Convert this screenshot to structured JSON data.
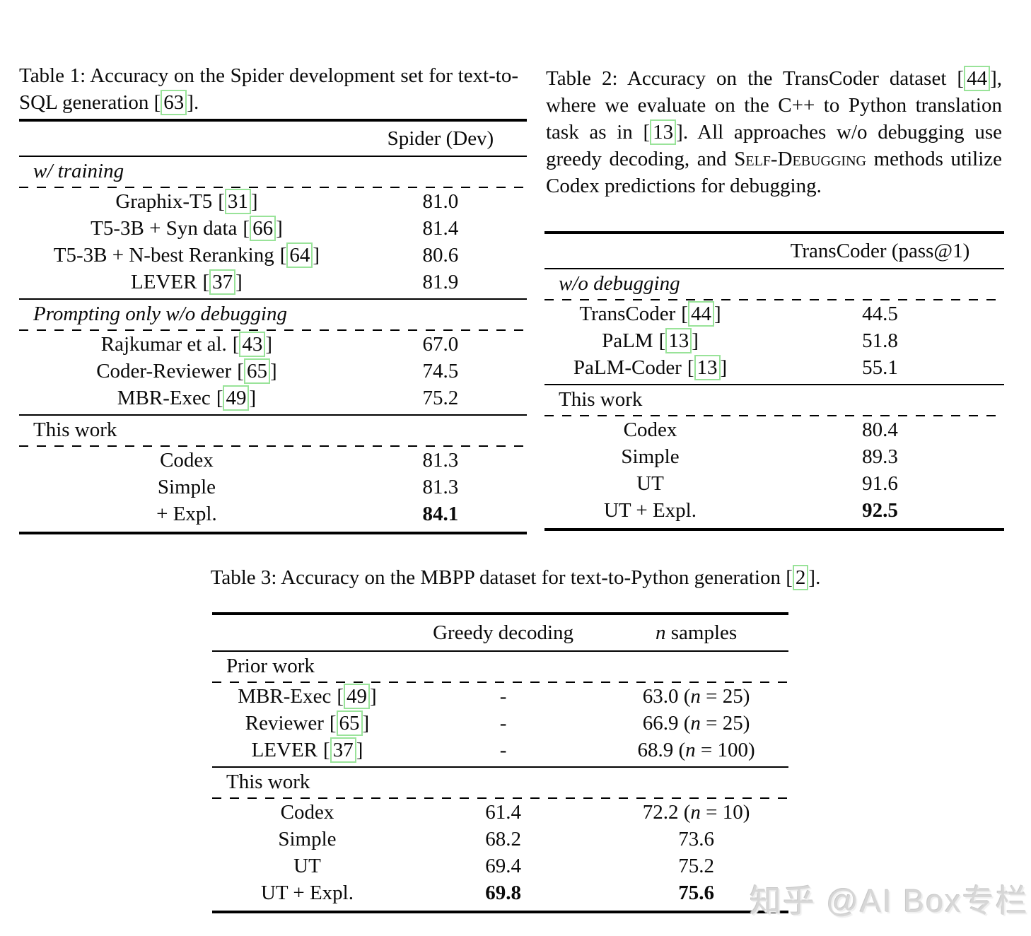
{
  "page": {
    "background": "#ffffff",
    "text_color": "#0a0a0a",
    "cite_box_color": "#99e399",
    "watermark_color": "#d7d7d7"
  },
  "punct": {
    "lb": "[",
    "rb": "]"
  },
  "table1": {
    "caption": {
      "pre": "Table 1: Accuracy on the Spider development set for text-to-SQL generation ",
      "cite": "63",
      "post": "."
    },
    "header": {
      "col1": "Spider (Dev)"
    },
    "sections": [
      {
        "title": "w/ training",
        "rows": [
          {
            "label": "Graphix-T5",
            "cite": "31",
            "value": "81.0"
          },
          {
            "label": "T5-3B + Syn data",
            "cite": "66",
            "value": "81.4"
          },
          {
            "label": "T5-3B + N-best Reranking",
            "cite": "64",
            "value": "80.6"
          },
          {
            "label": "LEVER",
            "cite": "37",
            "value": "81.9"
          }
        ]
      },
      {
        "title": "Prompting only w/o debugging",
        "rows": [
          {
            "label": "Rajkumar et al.",
            "cite": "43",
            "value": "67.0"
          },
          {
            "label": "Coder-Reviewer",
            "cite": "65",
            "value": "74.5"
          },
          {
            "label": "MBR-Exec",
            "cite": "49",
            "value": "75.2"
          }
        ]
      },
      {
        "title": "This work",
        "rows": [
          {
            "label": "Codex",
            "value": "81.3"
          },
          {
            "label": "Simple",
            "value": "81.3"
          },
          {
            "label": "+ Expl.",
            "value": "84.1",
            "bold": true
          }
        ]
      }
    ]
  },
  "table2": {
    "caption": {
      "pre1": "Table 2: Accuracy on the TransCoder dataset ",
      "cite1": "44",
      "mid1": "], where we evaluate on the C++ to Python translation task as in [",
      "cite2": "13",
      "mid2": "]. All approaches w/o debugging use greedy decoding, and ",
      "sc": "Self-Debugging",
      "post": " methods utilize Codex predictions for debugging."
    },
    "header": {
      "col1": "TransCoder (pass@1)"
    },
    "sections": [
      {
        "title": "w/o debugging",
        "rows": [
          {
            "label": "TransCoder",
            "cite": "44",
            "value": "44.5"
          },
          {
            "label": "PaLM",
            "cite": "13",
            "value": "51.8"
          },
          {
            "label": "PaLM-Coder",
            "cite": "13",
            "value": "55.1"
          }
        ]
      },
      {
        "title": "This work",
        "rows": [
          {
            "label": "Codex",
            "value": "80.4"
          },
          {
            "label": "Simple",
            "value": "89.3"
          },
          {
            "label": "UT",
            "value": "91.6"
          },
          {
            "label": "UT + Expl.",
            "value": "92.5",
            "bold": true
          }
        ]
      }
    ]
  },
  "table3": {
    "caption": {
      "pre": "Table 3: Accuracy on the MBPP dataset for text-to-Python generation ",
      "cite": "2",
      "post": "."
    },
    "header": {
      "greedy": "Greedy decoding",
      "n": "n",
      "samples": " samples"
    },
    "sections": [
      {
        "title": "Prior work",
        "rows": [
          {
            "label": "MBR-Exec",
            "cite": "49",
            "greedy": "-",
            "s_pre": "63.0 (",
            "s_n": "n",
            "s_post": " = 25)"
          },
          {
            "label": "Reviewer",
            "cite": "65",
            "greedy": "-",
            "s_pre": "66.9 (",
            "s_n": "n",
            "s_post": " = 25)"
          },
          {
            "label": "LEVER",
            "cite": "37",
            "greedy": "-",
            "s_pre": "68.9 (",
            "s_n": "n",
            "s_post": " = 100)"
          }
        ]
      },
      {
        "title": "This work",
        "rows": [
          {
            "label": "Codex",
            "greedy": "61.4",
            "s_pre": "72.2 (",
            "s_n": "n",
            "s_post": " = 10)"
          },
          {
            "label": "Simple",
            "greedy": "68.2",
            "samples": "73.6"
          },
          {
            "label": "UT",
            "greedy": "69.4",
            "samples": "75.2"
          },
          {
            "label": "UT + Expl.",
            "greedy": "69.8",
            "samples": "75.6",
            "bold": true
          }
        ]
      }
    ]
  },
  "watermark": {
    "text": "知乎 @AI Box专栏"
  }
}
